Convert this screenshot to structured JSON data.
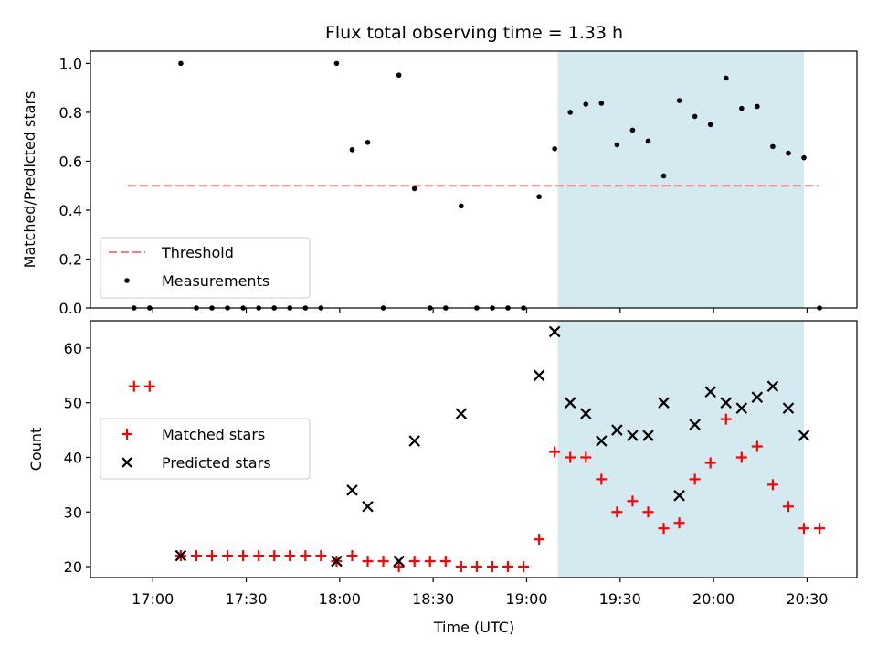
{
  "chart_data": [
    {
      "type": "scatter",
      "title": "Flux total observing time = 1.33 h",
      "ylabel": "Matched/Predicted stars",
      "ylim": [
        0,
        1.05
      ],
      "yticks": [
        0.0,
        0.2,
        0.4,
        0.6,
        0.8,
        1.0
      ],
      "ytick_labels": [
        "0.0",
        "0.2",
        "0.4",
        "0.6",
        "0.8",
        "1.0"
      ],
      "highlight_span": {
        "x_start": "19:10",
        "x_end": "20:29",
        "color": "#d4eaf0"
      },
      "threshold": {
        "value": 0.5,
        "x_start": "16:52",
        "x_end": "20:34",
        "color": "#f08080"
      },
      "legend": {
        "placement": "lower-left",
        "entries": [
          "Threshold",
          "Measurements"
        ]
      },
      "series": [
        {
          "name": "Measurements",
          "marker": "dot",
          "color": "#000000",
          "points": [
            [
              "16:54",
              0.0
            ],
            [
              "16:59",
              0.0
            ],
            [
              "17:09",
              1.0
            ],
            [
              "17:14",
              0.0
            ],
            [
              "17:19",
              0.0
            ],
            [
              "17:24",
              0.0
            ],
            [
              "17:29",
              0.0
            ],
            [
              "17:34",
              0.0
            ],
            [
              "17:39",
              0.0
            ],
            [
              "17:44",
              0.0
            ],
            [
              "17:49",
              0.0
            ],
            [
              "17:54",
              0.0
            ],
            [
              "17:59",
              1.0
            ],
            [
              "18:04",
              0.647
            ],
            [
              "18:09",
              0.677
            ],
            [
              "18:14",
              0.0
            ],
            [
              "18:19",
              0.952
            ],
            [
              "18:24",
              0.488
            ],
            [
              "18:29",
              0.0
            ],
            [
              "18:34",
              0.0
            ],
            [
              "18:39",
              0.417
            ],
            [
              "18:44",
              0.0
            ],
            [
              "18:49",
              0.0
            ],
            [
              "18:54",
              0.0
            ],
            [
              "18:59",
              0.0
            ],
            [
              "19:04",
              0.455
            ],
            [
              "19:09",
              0.651
            ],
            [
              "19:14",
              0.8
            ],
            [
              "19:19",
              0.833
            ],
            [
              "19:24",
              0.837
            ],
            [
              "19:29",
              0.667
            ],
            [
              "19:34",
              0.727
            ],
            [
              "19:39",
              0.682
            ],
            [
              "19:44",
              0.54
            ],
            [
              "19:49",
              0.848
            ],
            [
              "19:54",
              0.783
            ],
            [
              "19:59",
              0.75
            ],
            [
              "20:04",
              0.94
            ],
            [
              "20:09",
              0.816
            ],
            [
              "20:14",
              0.824
            ],
            [
              "20:19",
              0.66
            ],
            [
              "20:24",
              0.633
            ],
            [
              "20:29",
              0.614
            ],
            [
              "20:34",
              0.0
            ]
          ]
        }
      ]
    },
    {
      "type": "scatter",
      "xlabel": "Time (UTC)",
      "ylabel": "Count",
      "ylim": [
        18,
        65
      ],
      "yticks": [
        20,
        30,
        40,
        50,
        60
      ],
      "ytick_labels": [
        "20",
        "30",
        "40",
        "50",
        "60"
      ],
      "xlim": [
        "16:40",
        "20:46"
      ],
      "xticks": [
        "17:00",
        "17:30",
        "18:00",
        "18:30",
        "19:00",
        "19:30",
        "20:00",
        "20:30"
      ],
      "highlight_span": {
        "x_start": "19:10",
        "x_end": "20:29",
        "color": "#d4eaf0"
      },
      "legend": {
        "placement": "center-left",
        "entries": [
          "Matched stars",
          "Predicted stars"
        ]
      },
      "series": [
        {
          "name": "Matched stars",
          "marker": "plus",
          "color": "#ff0000",
          "points": [
            [
              "16:54",
              53
            ],
            [
              "16:59",
              53
            ],
            [
              "17:09",
              22
            ],
            [
              "17:14",
              22
            ],
            [
              "17:19",
              22
            ],
            [
              "17:24",
              22
            ],
            [
              "17:29",
              22
            ],
            [
              "17:34",
              22
            ],
            [
              "17:39",
              22
            ],
            [
              "17:44",
              22
            ],
            [
              "17:49",
              22
            ],
            [
              "17:54",
              22
            ],
            [
              "17:59",
              21
            ],
            [
              "18:04",
              22
            ],
            [
              "18:09",
              21
            ],
            [
              "18:14",
              21
            ],
            [
              "18:19",
              20
            ],
            [
              "18:24",
              21
            ],
            [
              "18:29",
              21
            ],
            [
              "18:34",
              21
            ],
            [
              "18:39",
              20
            ],
            [
              "18:44",
              20
            ],
            [
              "18:49",
              20
            ],
            [
              "18:54",
              20
            ],
            [
              "18:59",
              20
            ],
            [
              "19:04",
              25
            ],
            [
              "19:09",
              41
            ],
            [
              "19:14",
              40
            ],
            [
              "19:19",
              40
            ],
            [
              "19:24",
              36
            ],
            [
              "19:29",
              30
            ],
            [
              "19:34",
              32
            ],
            [
              "19:39",
              30
            ],
            [
              "19:44",
              27
            ],
            [
              "19:49",
              28
            ],
            [
              "19:54",
              36
            ],
            [
              "19:59",
              39
            ],
            [
              "20:04",
              47
            ],
            [
              "20:09",
              40
            ],
            [
              "20:14",
              42
            ],
            [
              "20:19",
              35
            ],
            [
              "20:24",
              31
            ],
            [
              "20:29",
              27
            ],
            [
              "20:34",
              27
            ]
          ]
        },
        {
          "name": "Predicted stars",
          "marker": "x",
          "color": "#000000",
          "points": [
            [
              "17:09",
              22
            ],
            [
              "17:59",
              21
            ],
            [
              "18:04",
              34
            ],
            [
              "18:09",
              31
            ],
            [
              "18:19",
              21
            ],
            [
              "18:24",
              43
            ],
            [
              "18:39",
              48
            ],
            [
              "19:04",
              55
            ],
            [
              "19:09",
              63
            ],
            [
              "19:14",
              50
            ],
            [
              "19:19",
              48
            ],
            [
              "19:24",
              43
            ],
            [
              "19:29",
              45
            ],
            [
              "19:34",
              44
            ],
            [
              "19:39",
              44
            ],
            [
              "19:44",
              50
            ],
            [
              "19:49",
              33
            ],
            [
              "19:54",
              46
            ],
            [
              "19:59",
              52
            ],
            [
              "20:04",
              50
            ],
            [
              "20:09",
              49
            ],
            [
              "20:14",
              51
            ],
            [
              "20:19",
              53
            ],
            [
              "20:24",
              49
            ],
            [
              "20:29",
              44
            ]
          ]
        }
      ]
    }
  ]
}
